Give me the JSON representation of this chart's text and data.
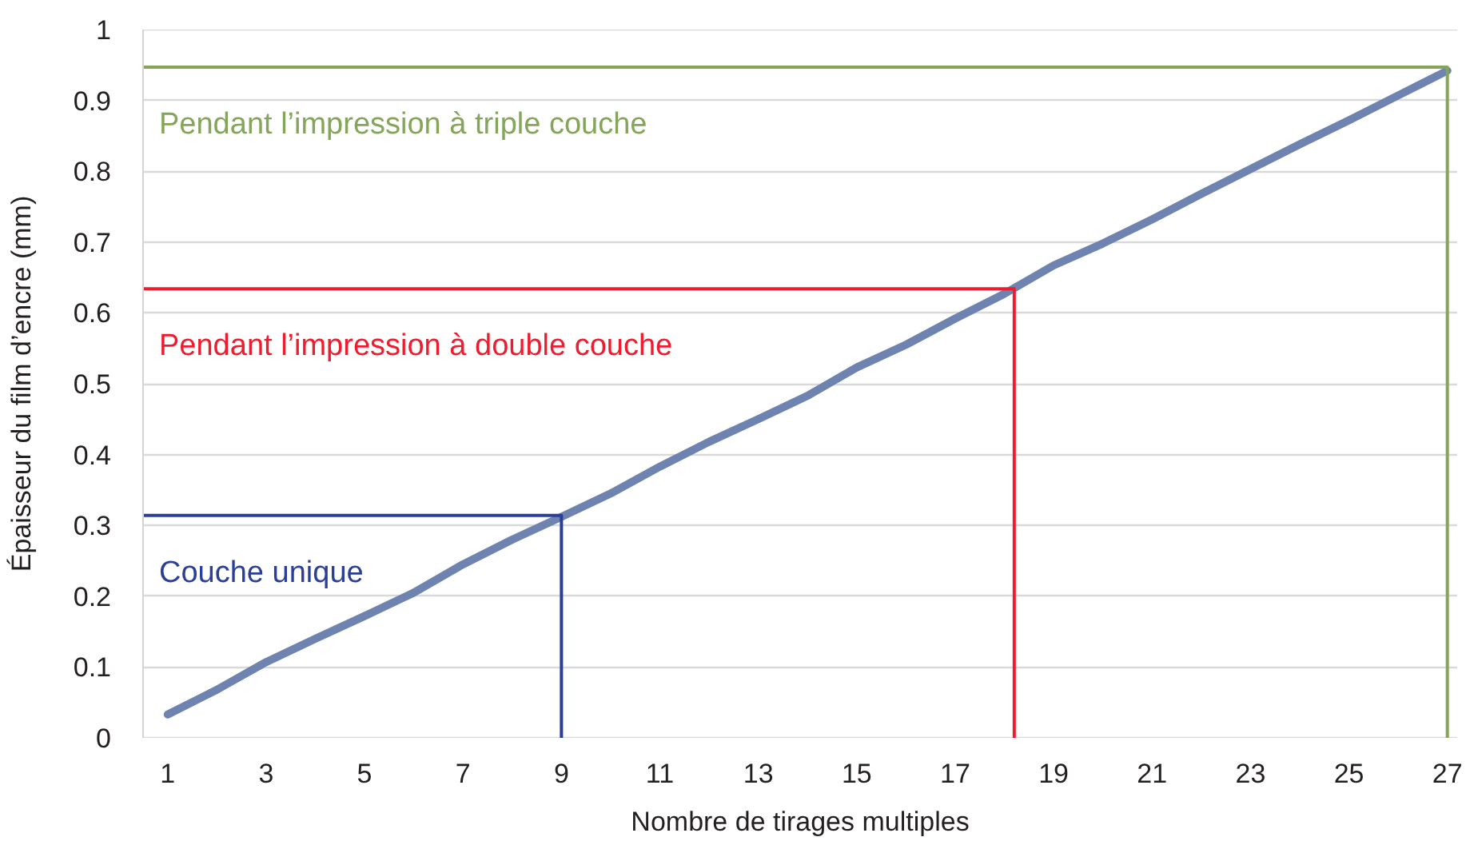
{
  "chart_data": {
    "type": "line",
    "xlabel": "Nombre de tirages multiples",
    "ylabel": "Épaisseur du film d’encre (mm)",
    "xlim": [
      0.5,
      27.2
    ],
    "ylim": [
      0,
      1
    ],
    "xticks": [
      1,
      3,
      5,
      7,
      9,
      11,
      13,
      15,
      17,
      19,
      21,
      23,
      25,
      27
    ],
    "yticks": [
      0,
      0.1,
      0.2,
      0.3,
      0.4,
      0.5,
      0.6,
      0.7,
      0.8,
      0.9,
      1
    ],
    "grid": "y",
    "series": [
      {
        "color": "#6f83b1",
        "x": [
          1,
          2,
          3,
          4,
          5,
          6,
          7,
          8,
          9,
          10,
          11,
          12,
          13,
          14,
          15,
          16,
          17,
          18,
          19,
          20,
          21,
          22,
          23,
          24,
          25,
          26,
          27
        ],
        "values": [
          0.033,
          0.068,
          0.107,
          0.14,
          0.172,
          0.205,
          0.245,
          0.28,
          0.312,
          0.345,
          0.383,
          0.418,
          0.45,
          0.483,
          0.523,
          0.555,
          0.592,
          0.627,
          0.667,
          0.698,
          0.732,
          0.768,
          0.803,
          0.838,
          0.872,
          0.907,
          0.942
        ]
      },
      {
        "name": "Couche unique",
        "color": "#2b3f98",
        "x": [
          0.5,
          9,
          9
        ],
        "values": [
          0.314,
          0.314,
          0
        ]
      },
      {
        "name": "Pendant l’impression à double couche",
        "color": "#ee1c2e",
        "x": [
          0.5,
          18.2,
          18.2
        ],
        "values": [
          0.634,
          0.634,
          0
        ]
      },
      {
        "name": "Pendant l’impression à triple couche",
        "color": "#84a55a",
        "x": [
          0.5,
          27,
          27
        ],
        "values": [
          0.947,
          0.947,
          0
        ]
      }
    ]
  }
}
